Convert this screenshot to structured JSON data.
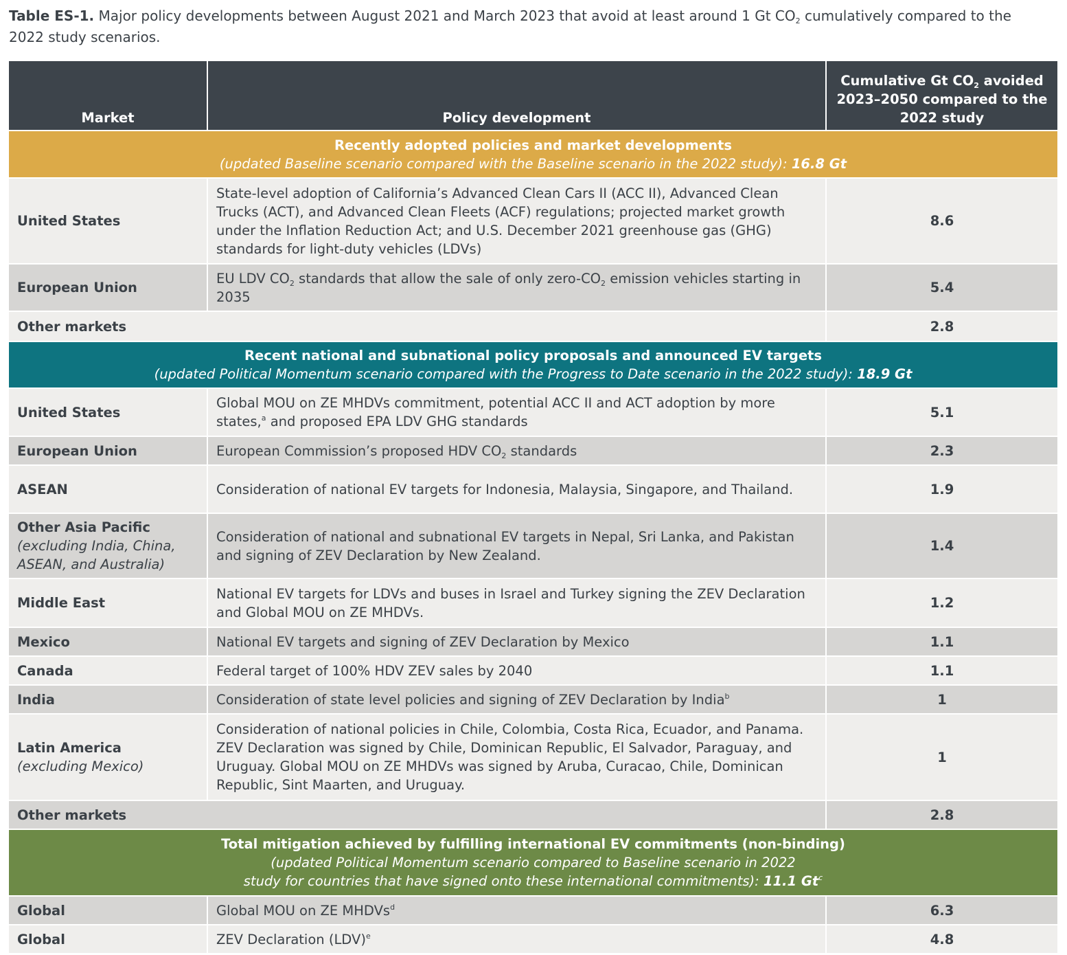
{
  "caption": {
    "label": "Table ES-1.",
    "text_before": " Major policy developments between August 2021 and March 2023 that avoid at least around 1 Gt CO",
    "sub": "2",
    "text_after": " cumulatively compared to the 2022 study scenarios."
  },
  "headers": {
    "market": "Market",
    "policy": "Policy development",
    "value_before": "Cumulative Gt CO",
    "value_sub": "2",
    "value_after": " avoided 2023–2050 compared to the 2022 study"
  },
  "sections": [
    {
      "title": "Recently adopted policies and market developments",
      "subtitle": "(updated Baseline scenario compared with the Baseline scenario in the 2022 study): ",
      "total": "16.8 Gt",
      "color": "#dcaa48",
      "rows": [
        {
          "market": "United States",
          "policy": "State-level adoption of California’s Advanced Clean Cars II (ACC II), Advanced Clean Trucks (ACT), and Advanced Clean Fleets (ACF) regulations; projected market growth under the Inflation Reduction Act; and U.S. December 2021 greenhouse gas (GHG) standards for light-duty vehicles (LDVs)",
          "value": "8.6"
        },
        {
          "market": "European Union",
          "policy_a": "EU LDV CO",
          "policy_sub1": "2",
          "policy_b": " standards that allow the sale of only zero-CO",
          "policy_sub2": "2",
          "policy_c": " emission vehicles starting in 2035",
          "value": "5.4"
        },
        {
          "market": "Other markets",
          "policy": "",
          "value": "2.8"
        }
      ]
    },
    {
      "title": "Recent national and subnational policy proposals and announced EV targets",
      "subtitle": "(updated Political Momentum scenario compared with the Progress to Date scenario in the 2022 study): ",
      "total": "18.9 Gt",
      "color": "#0e7480",
      "rows": [
        {
          "market": "United States",
          "policy_a": "Global MOU on ZE MHDVs commitment, potential ACC II and ACT adoption by more states,",
          "policy_sup": "a",
          "policy_b": " and proposed EPA LDV GHG standards",
          "value": "5.1"
        },
        {
          "market": "European Union",
          "policy_a": "European Commission’s proposed HDV CO",
          "policy_sub": "2",
          "policy_b": " standards",
          "value": "2.3"
        },
        {
          "market": "ASEAN",
          "policy": "Consideration of national EV targets for Indonesia, Malaysia, Singapore, and Thailand.",
          "value": "1.9"
        },
        {
          "market": "Other Asia Pacific",
          "market_note": "(excluding India, China, ASEAN, and Australia)",
          "policy": "Consideration of national and subnational EV targets in Nepal, Sri Lanka, and Pakistan and signing of ZEV Declaration by New Zealand.",
          "value": "1.4"
        },
        {
          "market": "Middle East",
          "policy": "National EV targets for LDVs and buses in Israel and Turkey signing the ZEV Declaration and Global MOU on ZE MHDVs.",
          "value": "1.2"
        },
        {
          "market": "Mexico",
          "policy": "National EV targets and signing of ZEV Declaration by Mexico",
          "value": "1.1"
        },
        {
          "market": "Canada",
          "policy": "Federal target of 100% HDV ZEV sales by 2040",
          "value": "1.1"
        },
        {
          "market": "India",
          "policy": "Consideration of state level policies and signing of ZEV Declaration by India",
          "policy_sup": "b",
          "value": "1"
        },
        {
          "market": "Latin America",
          "market_note": "(excluding Mexico)",
          "policy": "Consideration of national policies in Chile, Colombia, Costa Rica, Ecuador, and Panama. ZEV Declaration was signed by Chile, Dominican Republic, El Salvador, Paraguay, and Uruguay. Global MOU on ZE MHDVs was signed by Aruba, Curacao, Chile, Dominican Republic, Sint Maarten, and Uruguay.",
          "value": "1"
        },
        {
          "market": "Other markets",
          "policy": "",
          "value": "2.8"
        }
      ]
    },
    {
      "title": "Total mitigation achieved by fulfilling international EV commitments (non-binding)",
      "subtitle_1": "(updated Political Momentum scenario compared to Baseline scenario in 2022",
      "subtitle_2": "study for countries that have signed onto these international commitments): ",
      "total": "11.1 Gt",
      "total_sup": "c",
      "color": "#6d8a47",
      "rows": [
        {
          "market": "Global",
          "policy": "Global MOU on ZE MHDVs",
          "policy_sup": "d",
          "value": "6.3"
        },
        {
          "market": "Global",
          "policy": "ZEV Declaration (LDV)",
          "policy_sup": "e",
          "value": "4.8"
        }
      ]
    }
  ]
}
